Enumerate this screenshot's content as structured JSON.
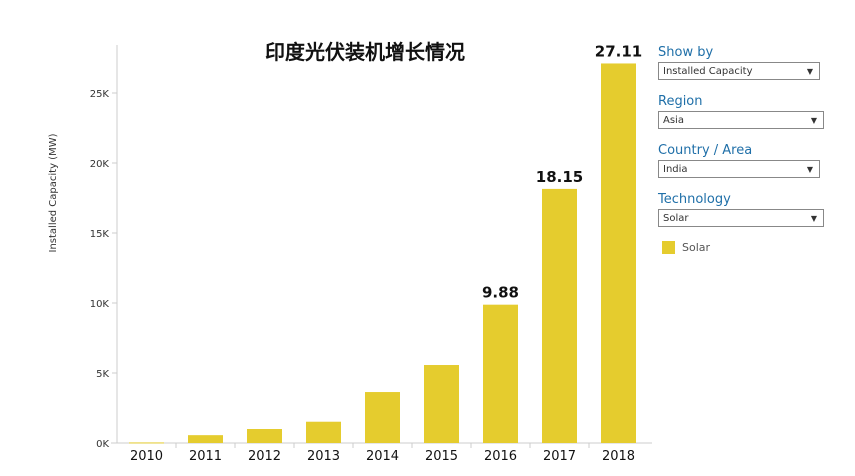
{
  "chart_data": {
    "type": "bar",
    "title": "印度光伏装机增长情况",
    "ylabel": "Installed Capacity (MW)",
    "xlabel": "",
    "categories": [
      "2010",
      "2011",
      "2012",
      "2013",
      "2014",
      "2015",
      "2016",
      "2017",
      "2018"
    ],
    "values": [
      40,
      560,
      1000,
      1520,
      3640,
      5570,
      9880,
      18150,
      27110
    ],
    "data_labels": {
      "6": "9.88",
      "7": "18.15",
      "8": "27.11"
    },
    "ylim": [
      0,
      28500
    ],
    "yticks": [
      0,
      5000,
      10000,
      15000,
      20000,
      25000
    ],
    "ytick_labels": [
      "0K",
      "5K",
      "10K",
      "15K",
      "20K",
      "25K"
    ],
    "grid": false,
    "series": [
      {
        "name": "Solar",
        "color": "#e5cc2e"
      }
    ]
  },
  "filters": [
    {
      "label": "Show by",
      "value": "Installed Capacity"
    },
    {
      "label": "Region",
      "value": "Asia"
    },
    {
      "label": "Country / Area",
      "value": "India"
    },
    {
      "label": "Technology",
      "value": "Solar"
    }
  ],
  "legend": {
    "label": "Solar",
    "color": "#e5cc2e"
  }
}
